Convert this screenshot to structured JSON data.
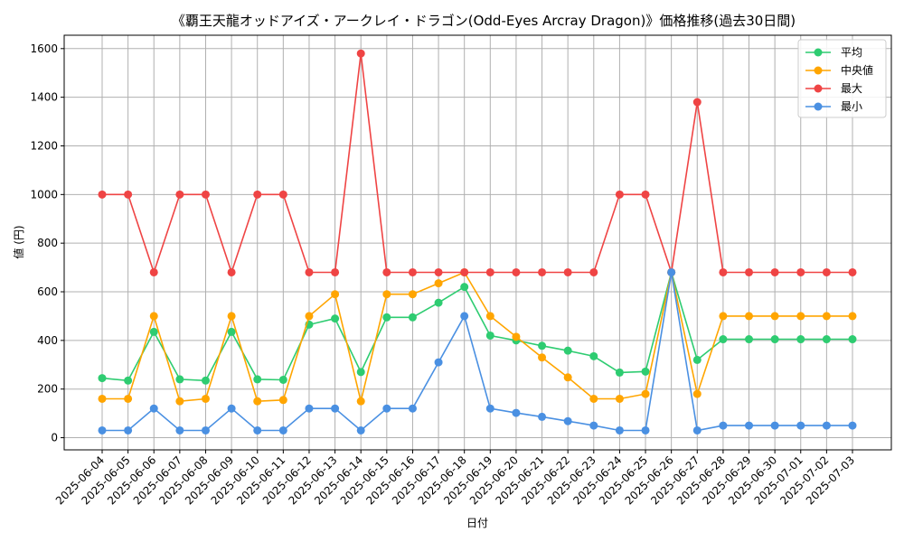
{
  "chart_data": {
    "type": "line",
    "title": "《覇王天龍オッドアイズ・アークレイ・ドラゴン(Odd-Eyes Arcray Dragon)》価格推移(過去30日間)",
    "xlabel": "日付",
    "ylabel": "値 (円)",
    "ylim": [
      -50,
      1655
    ],
    "yticks": [
      0,
      200,
      400,
      600,
      800,
      1000,
      1200,
      1400,
      1600
    ],
    "grid": true,
    "legend_position": "top-right",
    "categories": [
      "2025-06-04",
      "2025-06-05",
      "2025-06-06",
      "2025-06-07",
      "2025-06-08",
      "2025-06-09",
      "2025-06-10",
      "2025-06-11",
      "2025-06-12",
      "2025-06-13",
      "2025-06-14",
      "2025-06-15",
      "2025-06-16",
      "2025-06-17",
      "2025-06-18",
      "2025-06-19",
      "2025-06-20",
      "2025-06-21",
      "2025-06-22",
      "2025-06-23",
      "2025-06-24",
      "2025-06-25",
      "2025-06-26",
      "2025-06-27",
      "2025-06-28",
      "2025-06-29",
      "2025-06-30",
      "2025-07-01",
      "2025-07-02",
      "2025-07-03"
    ],
    "series": [
      {
        "name": "平均",
        "color": "#2ecc71",
        "values": [
          245,
          235,
          435,
          240,
          235,
          435,
          240,
          238,
          465,
          490,
          270,
          495,
          495,
          555,
          620,
          420,
          400,
          378,
          358,
          335,
          268,
          272,
          680,
          320,
          405,
          405,
          405,
          405,
          405,
          405
        ]
      },
      {
        "name": "中央値",
        "color": "#ffa500",
        "values": [
          160,
          160,
          500,
          150,
          160,
          500,
          150,
          155,
          500,
          590,
          150,
          590,
          590,
          635,
          680,
          500,
          415,
          330,
          248,
          160,
          160,
          180,
          680,
          180,
          500,
          500,
          500,
          500,
          500,
          500
        ]
      },
      {
        "name": "最大",
        "color": "#ef4444",
        "values": [
          1000,
          1000,
          680,
          1000,
          1000,
          680,
          1000,
          1000,
          680,
          680,
          1580,
          680,
          680,
          680,
          680,
          680,
          680,
          680,
          680,
          680,
          1000,
          1000,
          680,
          1380,
          680,
          680,
          680,
          680,
          680,
          680
        ]
      },
      {
        "name": "最小",
        "color": "#4a90e2",
        "values": [
          30,
          30,
          120,
          30,
          30,
          120,
          30,
          30,
          120,
          120,
          30,
          120,
          120,
          310,
          500,
          120,
          102,
          86,
          68,
          50,
          30,
          30,
          680,
          30,
          50,
          50,
          50,
          50,
          50,
          50
        ]
      }
    ]
  }
}
